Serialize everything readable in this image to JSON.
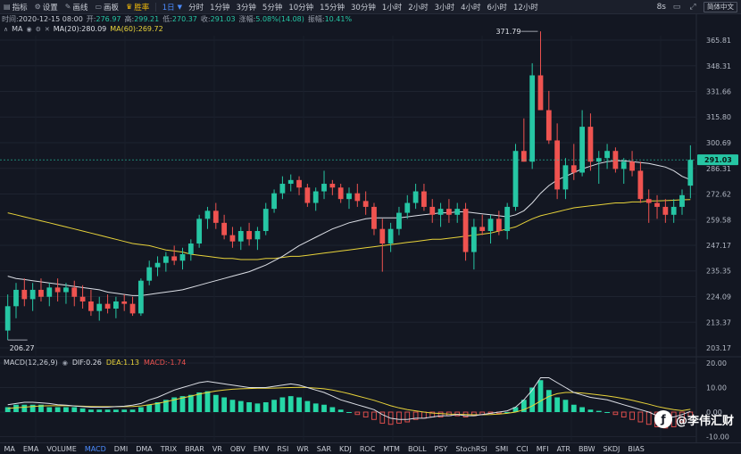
{
  "toolbar": {
    "tools": [
      {
        "label": "指标",
        "icon": "indicator-icon"
      },
      {
        "label": "设置",
        "icon": "gear-icon"
      },
      {
        "label": "画线",
        "icon": "pencil-icon"
      },
      {
        "label": "画板",
        "icon": "canvas-icon"
      },
      {
        "label": "胜率",
        "icon": "trophy-icon"
      }
    ],
    "timeframes": [
      "1日",
      "分时",
      "1分钟",
      "3分钟",
      "5分钟",
      "10分钟",
      "15分钟",
      "30分钟",
      "1小时",
      "2小时",
      "3小时",
      "4小时",
      "6小时",
      "12小时"
    ],
    "active_timeframe": "1日",
    "refresh_interval": "8s",
    "language_button": "简体中文"
  },
  "ohlc": {
    "time_label": "时间:",
    "time": "2020-12-15 08:00",
    "open_label": "开:",
    "open": "276.97",
    "high_label": "高:",
    "high": "299.21",
    "low_label": "低:",
    "low": "270.37",
    "close_label": "收:",
    "close": "291.03",
    "change_label": "涨幅:",
    "change": "5.08%(14.08)",
    "amplitude_label": "振幅:",
    "amplitude": "10.41%"
  },
  "ma_legend": {
    "name": "MA",
    "ma20": "MA(20):280.09",
    "ma60": "MA(60):269.72"
  },
  "macd_legend": {
    "name": "MACD(12,26,9)",
    "dif": "DIF:0.26",
    "dea": "DEA:1.13",
    "macd": "MACD:-1.74"
  },
  "indicator_tabs": [
    "MA",
    "EMA",
    "VOLUME",
    "MACD",
    "DMI",
    "DMA",
    "TRIX",
    "BRAR",
    "VR",
    "OBV",
    "EMV",
    "RSI",
    "WR",
    "SAR",
    "KDJ",
    "ROC",
    "MTM",
    "BOLL",
    "PSY",
    "StochRSI",
    "SMI",
    "CCI",
    "MFI",
    "ATR",
    "BBW",
    "SKDJ",
    "BIAS"
  ],
  "active_indicator": "MACD",
  "watermark": "@李伟汇财",
  "colors": {
    "up": "#26c6a4",
    "down": "#ef5350",
    "ma20": "#dcdfe6",
    "ma60": "#e8d33a",
    "accent": "#4c8cff",
    "background": "#131722"
  },
  "chart_data": {
    "type": "candlestick",
    "price_axis": {
      "ticks": [
        365.81,
        348.31,
        331.66,
        315.8,
        300.69,
        286.31,
        272.62,
        259.58,
        247.17,
        235.35,
        224.09,
        213.37,
        203.17
      ],
      "scale": "log"
    },
    "macd_axis": {
      "ticks": [
        20.0,
        10.0,
        0.0,
        -10.0
      ]
    },
    "max_label": "371.79",
    "min_label": "206.27",
    "last_price": "291.03",
    "candles": [
      [
        210,
        225,
        206.27,
        220
      ],
      [
        220,
        230,
        215,
        227
      ],
      [
        227,
        232,
        220,
        223
      ],
      [
        223,
        230,
        218,
        227
      ],
      [
        227,
        232,
        222,
        224
      ],
      [
        224,
        230,
        220,
        228
      ],
      [
        228,
        232,
        222,
        226
      ],
      [
        226,
        230,
        221,
        228
      ],
      [
        228,
        231,
        220,
        224
      ],
      [
        224,
        229,
        219,
        222
      ],
      [
        222,
        227,
        216,
        218
      ],
      [
        218,
        224,
        214,
        221
      ],
      [
        221,
        225,
        217,
        219
      ],
      [
        219,
        224,
        215,
        222
      ],
      [
        222,
        225,
        218,
        221
      ],
      [
        221,
        224,
        216,
        217
      ],
      [
        217,
        232,
        216,
        231
      ],
      [
        231,
        240,
        229,
        237
      ],
      [
        237,
        242,
        233,
        239
      ],
      [
        239,
        244,
        235,
        242
      ],
      [
        242,
        247,
        238,
        240
      ],
      [
        240,
        246,
        236,
        243
      ],
      [
        243,
        250,
        240,
        248
      ],
      [
        248,
        262,
        246,
        260
      ],
      [
        260,
        266,
        255,
        264
      ],
      [
        264,
        268,
        255,
        258
      ],
      [
        258,
        262,
        250,
        252
      ],
      [
        252,
        256,
        246,
        249
      ],
      [
        249,
        256,
        245,
        254
      ],
      [
        254,
        258,
        247,
        250
      ],
      [
        250,
        256,
        245,
        254
      ],
      [
        254,
        268,
        252,
        265
      ],
      [
        265,
        275,
        263,
        273
      ],
      [
        273,
        282,
        270,
        278
      ],
      [
        278,
        283,
        274,
        280
      ],
      [
        280,
        282,
        272,
        276
      ],
      [
        276,
        278,
        266,
        268
      ],
      [
        268,
        276,
        264,
        274
      ],
      [
        274,
        285,
        270,
        278
      ],
      [
        278,
        280,
        272,
        276
      ],
      [
        276,
        278,
        268,
        270
      ],
      [
        270,
        276,
        265,
        273
      ],
      [
        273,
        278,
        266,
        269
      ],
      [
        269,
        274,
        262,
        266
      ],
      [
        266,
        268,
        252,
        255
      ],
      [
        255,
        260,
        235,
        248
      ],
      [
        248,
        258,
        244,
        255
      ],
      [
        255,
        266,
        252,
        263
      ],
      [
        263,
        272,
        260,
        268
      ],
      [
        268,
        278,
        265,
        274
      ],
      [
        274,
        278,
        264,
        266
      ],
      [
        266,
        270,
        258,
        262
      ],
      [
        262,
        268,
        256,
        265
      ],
      [
        265,
        270,
        258,
        262
      ],
      [
        262,
        268,
        258,
        265
      ],
      [
        265,
        268,
        240,
        244
      ],
      [
        244,
        260,
        236,
        256
      ],
      [
        256,
        262,
        252,
        254
      ],
      [
        254,
        262,
        248,
        260
      ],
      [
        260,
        264,
        252,
        254
      ],
      [
        254,
        268,
        250,
        266
      ],
      [
        266,
        300,
        264,
        296
      ],
      [
        296,
        315,
        290,
        290
      ],
      [
        290,
        350,
        286,
        342
      ],
      [
        342,
        372,
        320,
        320
      ],
      [
        320,
        332,
        300,
        302
      ],
      [
        302,
        312,
        270,
        275
      ],
      [
        275,
        292,
        270,
        288
      ],
      [
        288,
        300,
        280,
        284
      ],
      [
        284,
        320,
        282,
        310
      ],
      [
        310,
        318,
        285,
        290
      ],
      [
        290,
        296,
        278,
        292
      ],
      [
        292,
        300,
        286,
        296
      ],
      [
        296,
        298,
        284,
        286
      ],
      [
        286,
        292,
        278,
        290
      ],
      [
        290,
        296,
        282,
        285
      ],
      [
        285,
        290,
        268,
        270
      ],
      [
        270,
        275,
        258,
        268
      ],
      [
        268,
        272,
        260,
        266
      ],
      [
        266,
        270,
        258,
        262
      ],
      [
        262,
        270,
        258,
        266
      ],
      [
        266,
        275,
        262,
        272
      ],
      [
        277,
        299.21,
        270.37,
        291.03
      ]
    ],
    "macd_hist": [
      2,
      3,
      3,
      3,
      3,
      2,
      2,
      2,
      2,
      1.5,
      1,
      1,
      1,
      1,
      1,
      1,
      2,
      3,
      4,
      5,
      6,
      6.5,
      7,
      8,
      8.5,
      7,
      6,
      5,
      4.5,
      4,
      3.5,
      4,
      5,
      6,
      6.5,
      6,
      4.5,
      3.5,
      3,
      2,
      1,
      0,
      -1,
      -2,
      -3,
      -4.5,
      -5,
      -4.5,
      -4,
      -3,
      -2.5,
      -2,
      -2,
      -1.5,
      -1.5,
      -2,
      -1.5,
      -1,
      -0.5,
      -0.5,
      0,
      2,
      5,
      10,
      13,
      9,
      6,
      5,
      3,
      2,
      1,
      0.5,
      0,
      -1,
      -2,
      -3,
      -4,
      -5,
      -6,
      -6.5,
      -6,
      -4,
      -1.74
    ],
    "dif": [
      3,
      3.5,
      4,
      4,
      3.8,
      3.5,
      3,
      2.8,
      2.5,
      2.2,
      2,
      2,
      2,
      2.2,
      2.4,
      2.8,
      3.5,
      5,
      6,
      7.5,
      9,
      10,
      11,
      12,
      12.5,
      12,
      11.5,
      11,
      10.5,
      10,
      10,
      10,
      10.5,
      11,
      11.5,
      11,
      10,
      9,
      8,
      6.5,
      5,
      4,
      3,
      2,
      1,
      -1,
      -2.5,
      -3,
      -3,
      -2.5,
      -2.5,
      -2,
      -1.5,
      -1.5,
      -1,
      -1.5,
      -1.5,
      -1,
      -0.5,
      0,
      0.5,
      2,
      5,
      9,
      14,
      14,
      12,
      10,
      8,
      7,
      6,
      5.5,
      5,
      4,
      3,
      2,
      1,
      0,
      -1.5,
      -2,
      -2,
      -1,
      0.26
    ],
    "dea": [
      1.5,
      1.8,
      2,
      2.3,
      2.5,
      2.6,
      2.6,
      2.6,
      2.5,
      2.4,
      2.3,
      2.2,
      2.2,
      2.2,
      2.2,
      2.3,
      2.5,
      3,
      3.5,
      4.2,
      5,
      5.8,
      6.5,
      7.3,
      8,
      8.6,
      9,
      9.3,
      9.5,
      9.6,
      9.7,
      9.7,
      9.8,
      9.9,
      10,
      10.1,
      10,
      9.8,
      9.5,
      9,
      8.3,
      7.5,
      6.6,
      5.7,
      4.8,
      3.7,
      2.6,
      1.7,
      1,
      0.5,
      0,
      -0.4,
      -0.6,
      -0.8,
      -0.9,
      -1,
      -1.1,
      -1.1,
      -1,
      -0.8,
      -0.5,
      0,
      1,
      2.5,
      4.5,
      6.4,
      7.5,
      8,
      8,
      7.8,
      7.4,
      7,
      6.6,
      6.1,
      5.5,
      4.8,
      4,
      3.2,
      2.3,
      1.6,
      1,
      0.6,
      1.13
    ],
    "ma20": [
      233,
      232,
      231.5,
      231,
      230.5,
      230,
      229.5,
      229,
      228.5,
      228,
      227.5,
      227,
      226,
      225.5,
      225,
      224.5,
      224.5,
      225,
      225.5,
      226,
      226.5,
      227,
      228,
      229,
      230,
      231,
      232,
      233,
      234,
      235,
      236.5,
      238,
      240,
      242,
      244.5,
      247,
      249,
      251,
      253,
      255,
      256.5,
      258,
      259,
      260,
      260.5,
      260.5,
      260.5,
      260.5,
      261,
      261.5,
      262,
      262.5,
      263,
      263,
      263.5,
      263.5,
      263,
      262.5,
      262,
      261.5,
      261,
      262,
      264,
      268,
      273,
      277,
      280,
      282,
      284,
      286,
      287.5,
      289,
      290,
      290.5,
      290.5,
      290,
      289.5,
      289,
      288,
      287,
      285,
      282,
      280.09
    ],
    "ma60": [
      263,
      262,
      261,
      260,
      259,
      258,
      257,
      256,
      255,
      254,
      253,
      252,
      251,
      250,
      249,
      248,
      247.5,
      247,
      246,
      245,
      244.5,
      244,
      243,
      242.5,
      242,
      241.5,
      241,
      241,
      240.5,
      240.5,
      240.5,
      241,
      241,
      241.5,
      242,
      242,
      242.5,
      243,
      243.5,
      244,
      244.5,
      245,
      245.5,
      246,
      246.5,
      247,
      247.5,
      248,
      248.5,
      249,
      249.5,
      250,
      250,
      250.5,
      251,
      251.5,
      252,
      252.5,
      253,
      254,
      255,
      256,
      258,
      260,
      261.5,
      262.5,
      263.5,
      264.5,
      265.5,
      266,
      266.5,
      267,
      267.5,
      268,
      268,
      268.5,
      268.5,
      269,
      269,
      269.2,
      269.4,
      269.6,
      269.72
    ]
  }
}
